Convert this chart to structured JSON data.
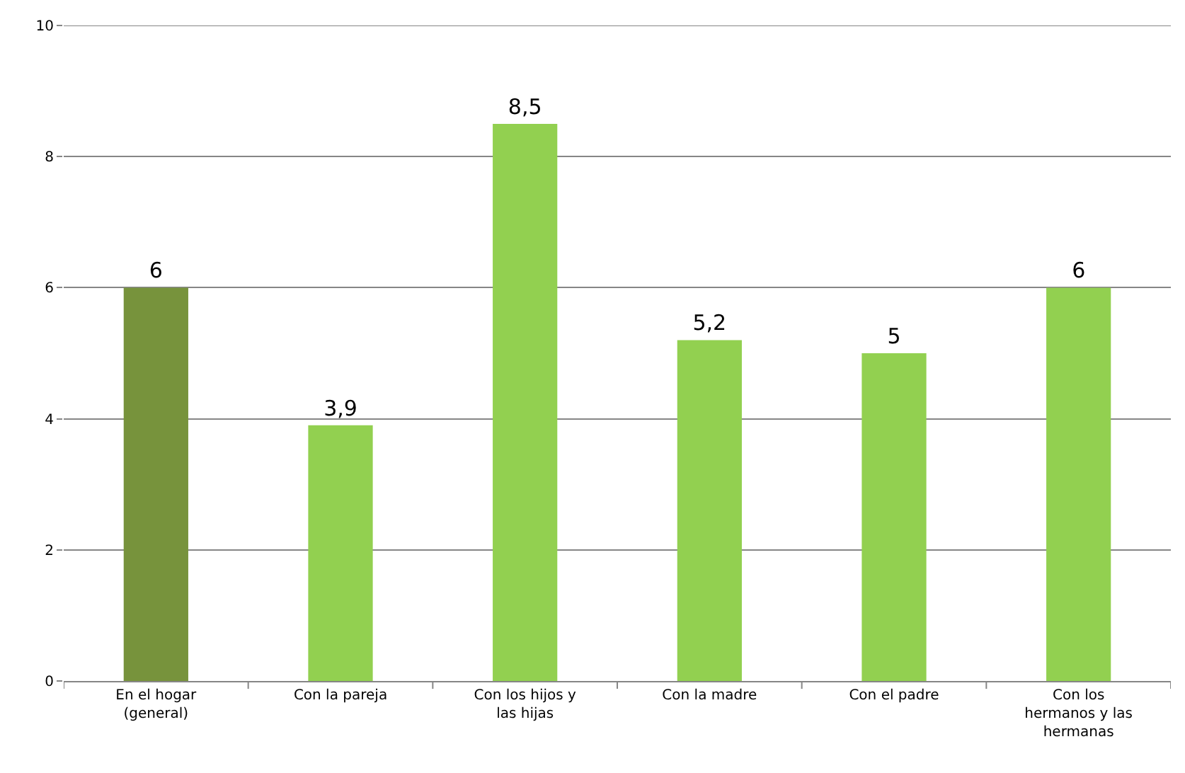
{
  "chart_data": {
    "type": "bar",
    "categories": [
      "En el hogar (general)",
      "Con la pareja",
      "Con los hijos y las hijas",
      "Con la madre",
      "Con el padre",
      "Con los hermanos y las hermanas"
    ],
    "values": [
      6,
      3.9,
      8.5,
      5.2,
      5,
      6
    ],
    "colors": [
      "#77933c",
      "#92d050",
      "#92d050",
      "#92d050",
      "#92d050",
      "#92d050"
    ],
    "value_labels": [
      "6",
      "3,9",
      "8,5",
      "5,2",
      "5",
      "6"
    ],
    "ylim": [
      0,
      10
    ],
    "yticks": [
      0,
      2,
      4,
      6,
      8,
      10
    ],
    "grid": "y"
  }
}
